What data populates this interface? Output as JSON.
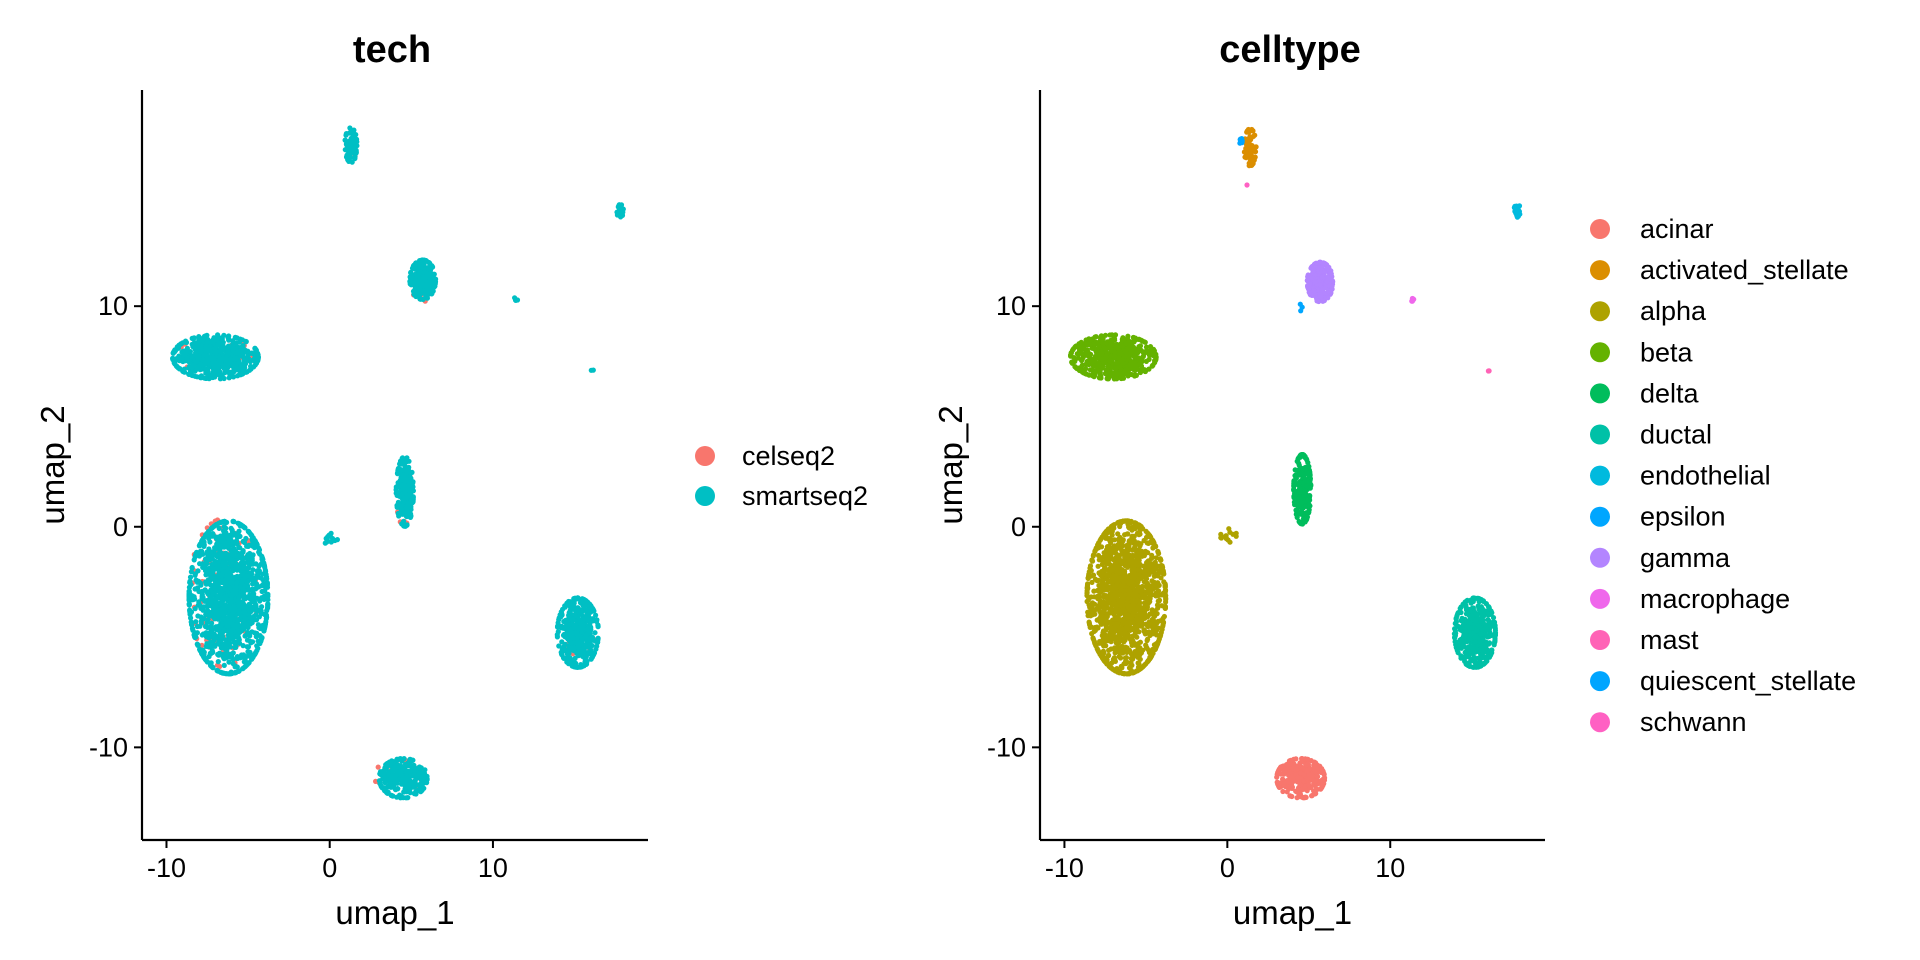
{
  "chart_data": [
    {
      "type": "scatter",
      "title": "tech",
      "xlabel": "umap_1",
      "ylabel": "umap_2",
      "xlim": [
        -11.5,
        19.5
      ],
      "ylim": [
        -14.2,
        19.8
      ],
      "xticks": [
        -10,
        0,
        10
      ],
      "yticks": [
        -10,
        0,
        10
      ],
      "x_tick_labels": [
        "-10",
        "0",
        "10"
      ],
      "y_tick_labels": [
        "-10",
        "0",
        "10"
      ],
      "grid": false,
      "legend_position": "right",
      "series": [
        {
          "name": "celseq2",
          "color": "#F8766D",
          "clusters": [
            {
              "cx": -6.5,
              "cy": -3.0,
              "rx": 2.0,
              "ry": 3.2,
              "n": 110
            },
            {
              "cx": -7.0,
              "cy": 7.8,
              "rx": 2.2,
              "ry": 0.8,
              "n": 45
            },
            {
              "cx": 4.6,
              "cy": 1.2,
              "rx": 0.45,
              "ry": 1.4,
              "n": 14
            },
            {
              "cx": 5.6,
              "cy": 10.9,
              "rx": 0.6,
              "ry": 0.7,
              "n": 14
            },
            {
              "cx": 1.3,
              "cy": 17.1,
              "rx": 0.3,
              "ry": 0.5,
              "n": 10
            },
            {
              "cx": 4.2,
              "cy": -11.3,
              "rx": 1.4,
              "ry": 0.7,
              "n": 30
            },
            {
              "cx": 15.3,
              "cy": -5.0,
              "rx": 1.0,
              "ry": 1.1,
              "n": 20
            }
          ]
        },
        {
          "name": "smartseq2",
          "color": "#00BFC4",
          "clusters": [
            {
              "cx": -6.2,
              "cy": -3.2,
              "rx": 2.3,
              "ry": 3.3,
              "n": 1300
            },
            {
              "cx": -7.0,
              "cy": 7.7,
              "rx": 2.5,
              "ry": 0.95,
              "n": 500
            },
            {
              "cx": 4.6,
              "cy": 1.6,
              "rx": 0.5,
              "ry": 1.5,
              "n": 220
            },
            {
              "cx": 5.7,
              "cy": 11.2,
              "rx": 0.75,
              "ry": 0.85,
              "n": 240
            },
            {
              "cx": 1.3,
              "cy": 17.3,
              "rx": 0.35,
              "ry": 0.75,
              "n": 80
            },
            {
              "cx": 4.5,
              "cy": -11.4,
              "rx": 1.4,
              "ry": 0.85,
              "n": 260
            },
            {
              "cx": 15.2,
              "cy": -4.8,
              "rx": 1.2,
              "ry": 1.5,
              "n": 420
            },
            {
              "cx": 17.8,
              "cy": 14.3,
              "rx": 0.2,
              "ry": 0.3,
              "n": 25
            },
            {
              "cx": 11.4,
              "cy": 10.3,
              "rx": 0.1,
              "ry": 0.1,
              "n": 5
            },
            {
              "cx": 16.1,
              "cy": 7.1,
              "rx": 0.08,
              "ry": 0.08,
              "n": 2
            },
            {
              "cx": 0.1,
              "cy": -0.5,
              "rx": 0.55,
              "ry": 0.3,
              "n": 14
            }
          ]
        }
      ]
    },
    {
      "type": "scatter",
      "title": "celltype",
      "xlabel": "umap_1",
      "ylabel": "umap_2",
      "xlim": [
        -11.5,
        19.5
      ],
      "ylim": [
        -14.2,
        19.8
      ],
      "xticks": [
        -10,
        0,
        10
      ],
      "yticks": [
        -10,
        0,
        10
      ],
      "x_tick_labels": [
        "-10",
        "0",
        "10"
      ],
      "y_tick_labels": [
        "-10",
        "0",
        "10"
      ],
      "grid": false,
      "legend_position": "right",
      "series": [
        {
          "name": "acinar",
          "color": "#F8766D",
          "clusters": [
            {
              "cx": 4.5,
              "cy": -11.4,
              "rx": 1.4,
              "ry": 0.85,
              "n": 290
            }
          ]
        },
        {
          "name": "activated_stellate",
          "color": "#DB8E00",
          "clusters": [
            {
              "cx": 1.4,
              "cy": 17.2,
              "rx": 0.35,
              "ry": 0.8,
              "n": 80
            }
          ]
        },
        {
          "name": "alpha",
          "color": "#AEA200",
          "clusters": [
            {
              "cx": -6.2,
              "cy": -3.2,
              "rx": 2.3,
              "ry": 3.3,
              "n": 1400
            },
            {
              "cx": 0.0,
              "cy": -0.4,
              "rx": 0.55,
              "ry": 0.3,
              "n": 14
            }
          ]
        },
        {
          "name": "beta",
          "color": "#64B200",
          "clusters": [
            {
              "cx": -7.0,
              "cy": 7.7,
              "rx": 2.5,
              "ry": 0.95,
              "n": 540
            }
          ]
        },
        {
          "name": "delta",
          "color": "#00BD5C",
          "clusters": [
            {
              "cx": 4.6,
              "cy": 1.7,
              "rx": 0.5,
              "ry": 1.5,
              "n": 230
            }
          ]
        },
        {
          "name": "ductal",
          "color": "#00C1A7",
          "clusters": [
            {
              "cx": 15.2,
              "cy": -4.8,
              "rx": 1.2,
              "ry": 1.5,
              "n": 430
            }
          ]
        },
        {
          "name": "endothelial",
          "color": "#00BADE",
          "clusters": [
            {
              "cx": 17.8,
              "cy": 14.3,
              "rx": 0.2,
              "ry": 0.3,
              "n": 25
            }
          ]
        },
        {
          "name": "epsilon",
          "color": "#00A6FF",
          "clusters": [
            {
              "cx": 4.5,
              "cy": 10.0,
              "rx": 0.12,
              "ry": 0.2,
              "n": 3
            }
          ]
        },
        {
          "name": "gamma",
          "color": "#B385FF",
          "clusters": [
            {
              "cx": 5.7,
              "cy": 11.1,
              "rx": 0.75,
              "ry": 0.85,
              "n": 250
            }
          ]
        },
        {
          "name": "macrophage",
          "color": "#EF67EB",
          "clusters": [
            {
              "cx": 11.4,
              "cy": 10.3,
              "rx": 0.1,
              "ry": 0.1,
              "n": 5
            }
          ]
        },
        {
          "name": "mast",
          "color": "#FF63B6",
          "clusters": [
            {
              "cx": 16.1,
              "cy": 7.1,
              "rx": 0.08,
              "ry": 0.08,
              "n": 2
            }
          ]
        },
        {
          "name": "quiescent_stellate",
          "color": "#00A5FF",
          "clusters": [
            {
              "cx": 0.8,
              "cy": 17.5,
              "rx": 0.15,
              "ry": 0.2,
              "n": 8
            }
          ]
        },
        {
          "name": "schwann",
          "color": "#FF61C3",
          "clusters": [
            {
              "cx": 1.2,
              "cy": 15.5,
              "rx": 0.05,
              "ry": 0.05,
              "n": 1
            }
          ]
        }
      ]
    }
  ]
}
